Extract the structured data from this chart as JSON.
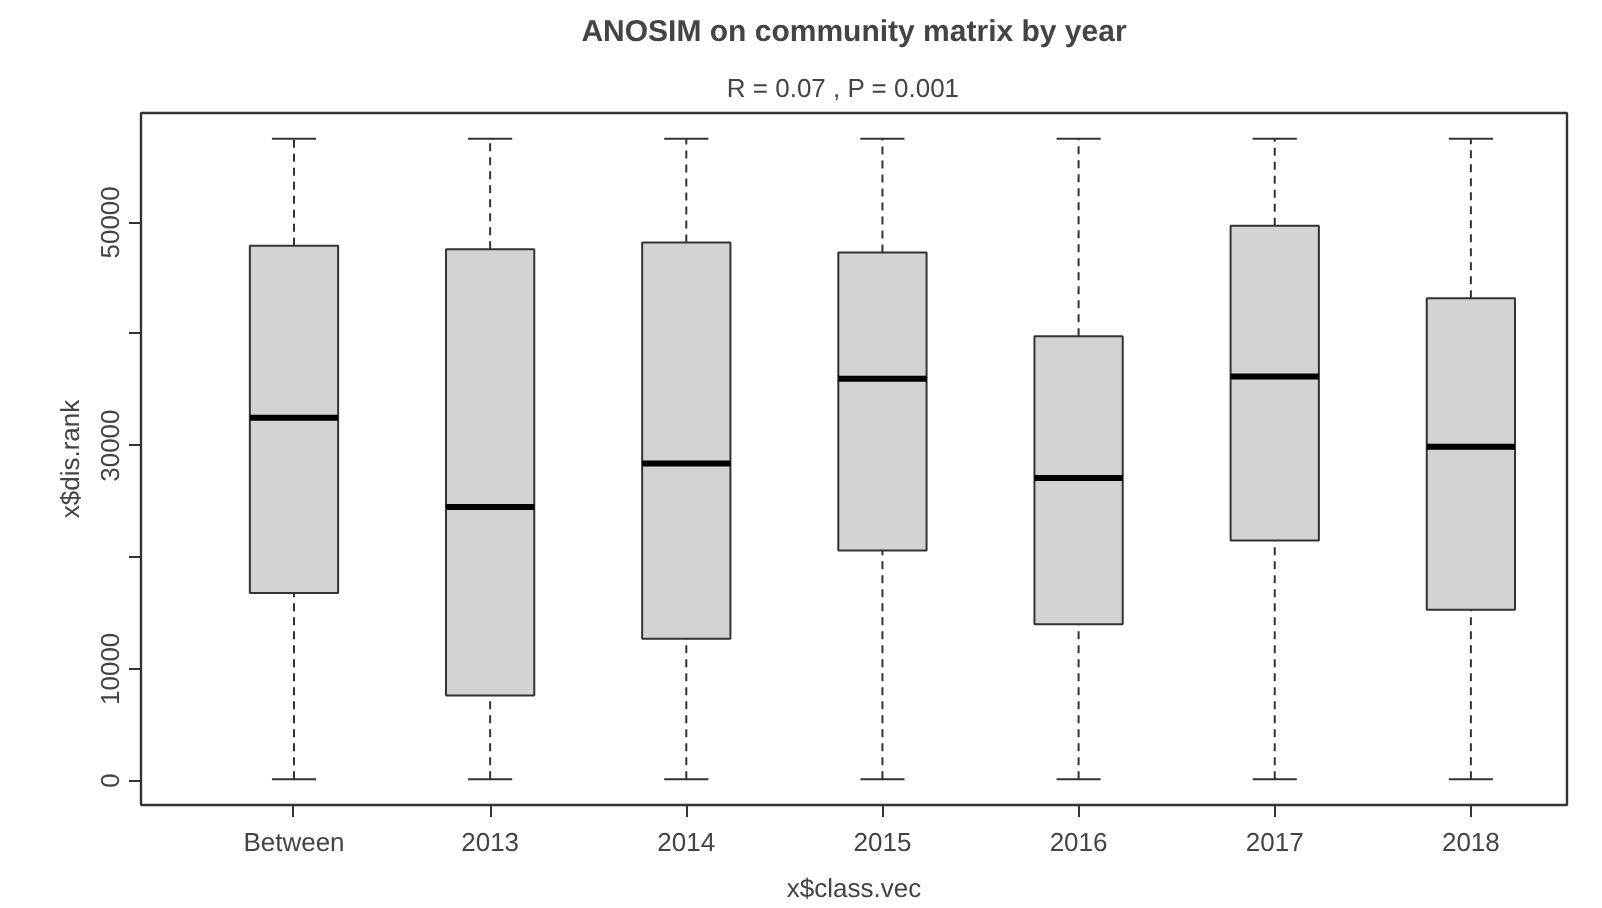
{
  "chart_data": {
    "type": "box",
    "title": "ANOSIM on community matrix by year",
    "subtitle": "R =  0.07 ,  P =  0.001",
    "xlabel": "x$class.vec",
    "ylabel": "x$dis.rank",
    "categories": [
      "Between",
      "2013",
      "2014",
      "2015",
      "2016",
      "2017",
      "2018"
    ],
    "color": "#d3d3d3",
    "boxes": [
      {
        "low": 100,
        "q1": 16800,
        "median": 32500,
        "q3": 47900,
        "high": 57500
      },
      {
        "low": 100,
        "q1": 7600,
        "median": 24500,
        "q3": 47600,
        "high": 57500
      },
      {
        "low": 100,
        "q1": 12700,
        "median": 28400,
        "q3": 48200,
        "high": 57500
      },
      {
        "low": 100,
        "q1": 20600,
        "median": 36000,
        "q3": 47300,
        "high": 57500
      },
      {
        "low": 100,
        "q1": 14000,
        "median": 27100,
        "q3": 39800,
        "high": 57500
      },
      {
        "low": 100,
        "q1": 21500,
        "median": 36200,
        "q3": 49700,
        "high": 57500
      },
      {
        "low": 100,
        "q1": 15300,
        "median": 29900,
        "q3": 43200,
        "high": 57500
      }
    ],
    "ylim": [
      -2200,
      59800
    ],
    "yticks": [
      0,
      10000,
      {
        "value": 20000,
        "label": null
      },
      30000,
      {
        "value": 40000,
        "label": null
      },
      50000
    ],
    "grid": false
  }
}
